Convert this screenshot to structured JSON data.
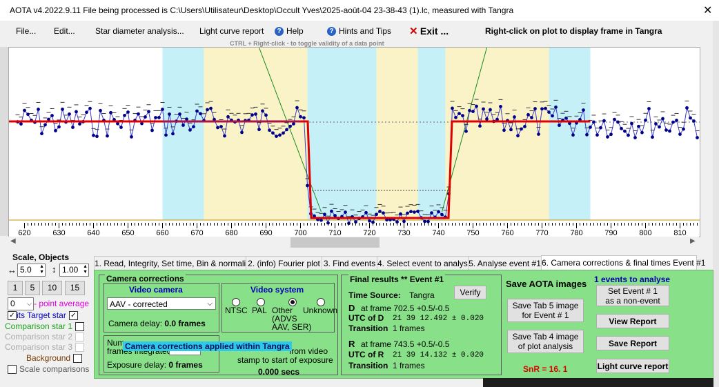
{
  "window": {
    "title": "AOTA v4.2022.9.11    File being processed is C:\\Users\\Utilisateur\\Desktop\\Occult Yves\\2025-août-04 23-38-43 (1).lc, measured with Tangra",
    "close_glyph": "✕"
  },
  "menu": {
    "file": "File...",
    "edit": "Edit...",
    "star_diameter": "Star diameter analysis...",
    "light_curve_report": "Light curve report",
    "help": "Help",
    "hints": "Hints and Tips",
    "exit_x": "✕",
    "exit": "Exit ...",
    "right_click_hint": "Right-click on plot to display frame in Tangra"
  },
  "plot": {
    "ctrl_hint": "CTRL + Right-click  -  to toggle validity of a data point",
    "x_ticks": [
      620,
      630,
      640,
      650,
      660,
      670,
      680,
      690,
      700,
      710,
      720,
      730,
      740,
      750,
      760,
      770,
      780,
      790,
      800,
      810
    ],
    "x_range": [
      617.5,
      815.5
    ],
    "colors": {
      "cyan_band": "#c6f0f8",
      "yellow_band": "#fbf3c8",
      "points": "#00008b",
      "model": "#dd0000",
      "green_line": "#1a8a1a",
      "baseline": "#c89600"
    },
    "cyan_bands": [
      [
        660,
        672
      ],
      [
        702,
        722
      ],
      [
        734,
        742
      ],
      [
        772,
        784
      ]
    ],
    "yellow_bands": [
      [
        672,
        702
      ],
      [
        722,
        734
      ],
      [
        742,
        772
      ]
    ],
    "upper_level": 175,
    "lower_level": 315,
    "d_frame": 702.5,
    "r_frame": 743.5
  },
  "scale_panel": {
    "heading": "Scale,  Objects",
    "h_arrow": "↔",
    "h_value": "5.0",
    "v_arrow": "↕",
    "v_value": "1.00",
    "zoom_buttons": [
      "1",
      "5",
      "10",
      "15"
    ],
    "point_avg_value": "0",
    "point_avg_label": "- point average",
    "target_prefix": "its",
    "target_label": "Target star",
    "target_check": "✓",
    "comp1": "Comparison star 1",
    "comp2": "Comparison star 2",
    "comp3": "Comparison star 3",
    "background": "Background",
    "scale_comparisons": "Scale comparisons"
  },
  "tabs": [
    "1.  Read, Integrity, Set time, Bin & normalise",
    "2. (info)  Fourier plot",
    "3. Find events",
    "4. Select event to analyse",
    "5. Analyse event #1",
    "6. Camera corrections & final times Event #1"
  ],
  "camera": {
    "group_title": "Camera corrections",
    "video_camera_title": "Video camera",
    "camera_value": "AAV - corrected",
    "camera_delay_label": "Camera delay: ",
    "camera_delay_value": "0.0 frames",
    "video_system_title": "Video system",
    "ntsc": "NTSC",
    "pal": "PAL",
    "other": "Other",
    "other_sub1": "(ADVS",
    "other_sub2": "AAV, SER)",
    "unknown": "Unknown",
    "frames_label_1": "Num",
    "frames_label_2": "frames integrated",
    "tooltip": "Camera corrections applied within Tangra",
    "stamp_text_1": "from video",
    "stamp_text_2": "stamp to start of exposure",
    "exposure_delay_label": "Exposure delay: ",
    "exposure_delay_value": "0 frames",
    "secs_value": "0.000 secs"
  },
  "final": {
    "title": "Final results  **  Event #1",
    "time_source_label": "Time Source:",
    "time_source_value": "Tangra",
    "verify": "Verify",
    "d_label": "D",
    "d_frame_text": "at frame 702.5  +0.5/-0.5",
    "utc_d_label": "UTC of D",
    "utc_d_value": "21 39 12.492 ± 0.020",
    "transition_label": "Transition",
    "d_transition_value": "1 frames",
    "r_label": "R",
    "r_frame_text": "at frame 743.5  +0.5/-0.5",
    "utc_r_label": "UTC of R",
    "utc_r_value": "21 39 14.132 ± 0.020",
    "r_transition_value": "1 frames"
  },
  "save": {
    "title": "Save AOTA images",
    "tab5_btn": "Save Tab 5 image\nfor Event # 1",
    "tab4_btn": "Save Tab 4 image\nof plot analysis",
    "snr": "SnR = 16. 1"
  },
  "events": {
    "title": "1  events to analyse",
    "set_event": "Set Event # 1\nas a non-event",
    "view_report": "View Report",
    "save_report": "Save Report",
    "light_curve_report": "Light curve report"
  }
}
